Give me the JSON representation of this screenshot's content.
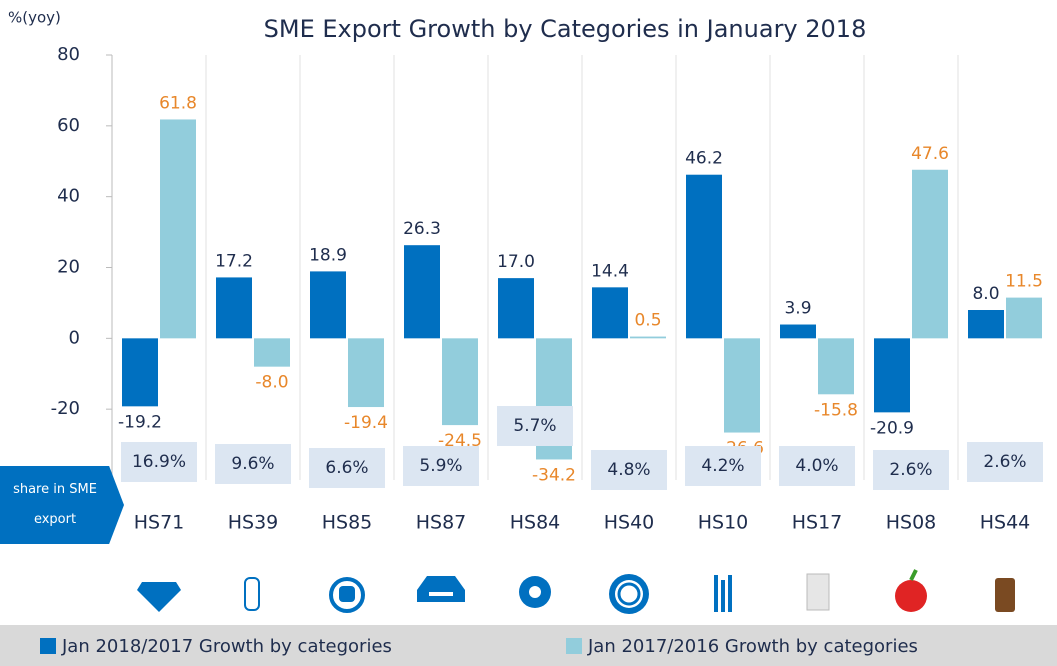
{
  "chart_data": {
    "type": "bar",
    "title": "SME Export Growth by Categories in January 2018",
    "y_axis_label": "%(yoy)",
    "categories": [
      "HS71",
      "HS39",
      "HS85",
      "HS87",
      "HS84",
      "HS40",
      "HS10",
      "HS17",
      "HS08",
      "HS44"
    ],
    "series": [
      {
        "name": "Jan 2018/2017 Growth by categories",
        "color": "#0070c0",
        "values": [
          -19.2,
          17.2,
          18.9,
          26.3,
          17.0,
          14.4,
          46.2,
          3.9,
          -20.9,
          8.0
        ],
        "value_labels": [
          "-19.2",
          "17.2",
          "18.9",
          "26.3",
          "17.0",
          "14.4",
          "46.2",
          "3.9",
          "-20.9",
          "8.0"
        ]
      },
      {
        "name": "Jan 2017/2016 Growth by categories",
        "color": "#92cddc",
        "values": [
          61.8,
          -8.0,
          -19.4,
          -24.5,
          -34.2,
          0.5,
          -26.6,
          -15.8,
          47.6,
          11.5
        ],
        "value_labels": [
          "61.8",
          "-8.0",
          "-19.4",
          "-24.5",
          "-34.2",
          "0.5",
          "-26.6",
          "-15.8",
          "47.6",
          "11.5"
        ]
      }
    ],
    "share_label": "share in SME export",
    "shares": [
      "16.9%",
      "9.6%",
      "6.6%",
      "5.9%",
      "5.7%",
      "4.8%",
      "4.2%",
      "4.0%",
      "2.6%",
      "2.6%"
    ],
    "ylim": [
      -40,
      80
    ],
    "yticks": [
      80,
      60,
      40,
      20,
      0,
      -20,
      -40
    ],
    "grid": true
  }
}
